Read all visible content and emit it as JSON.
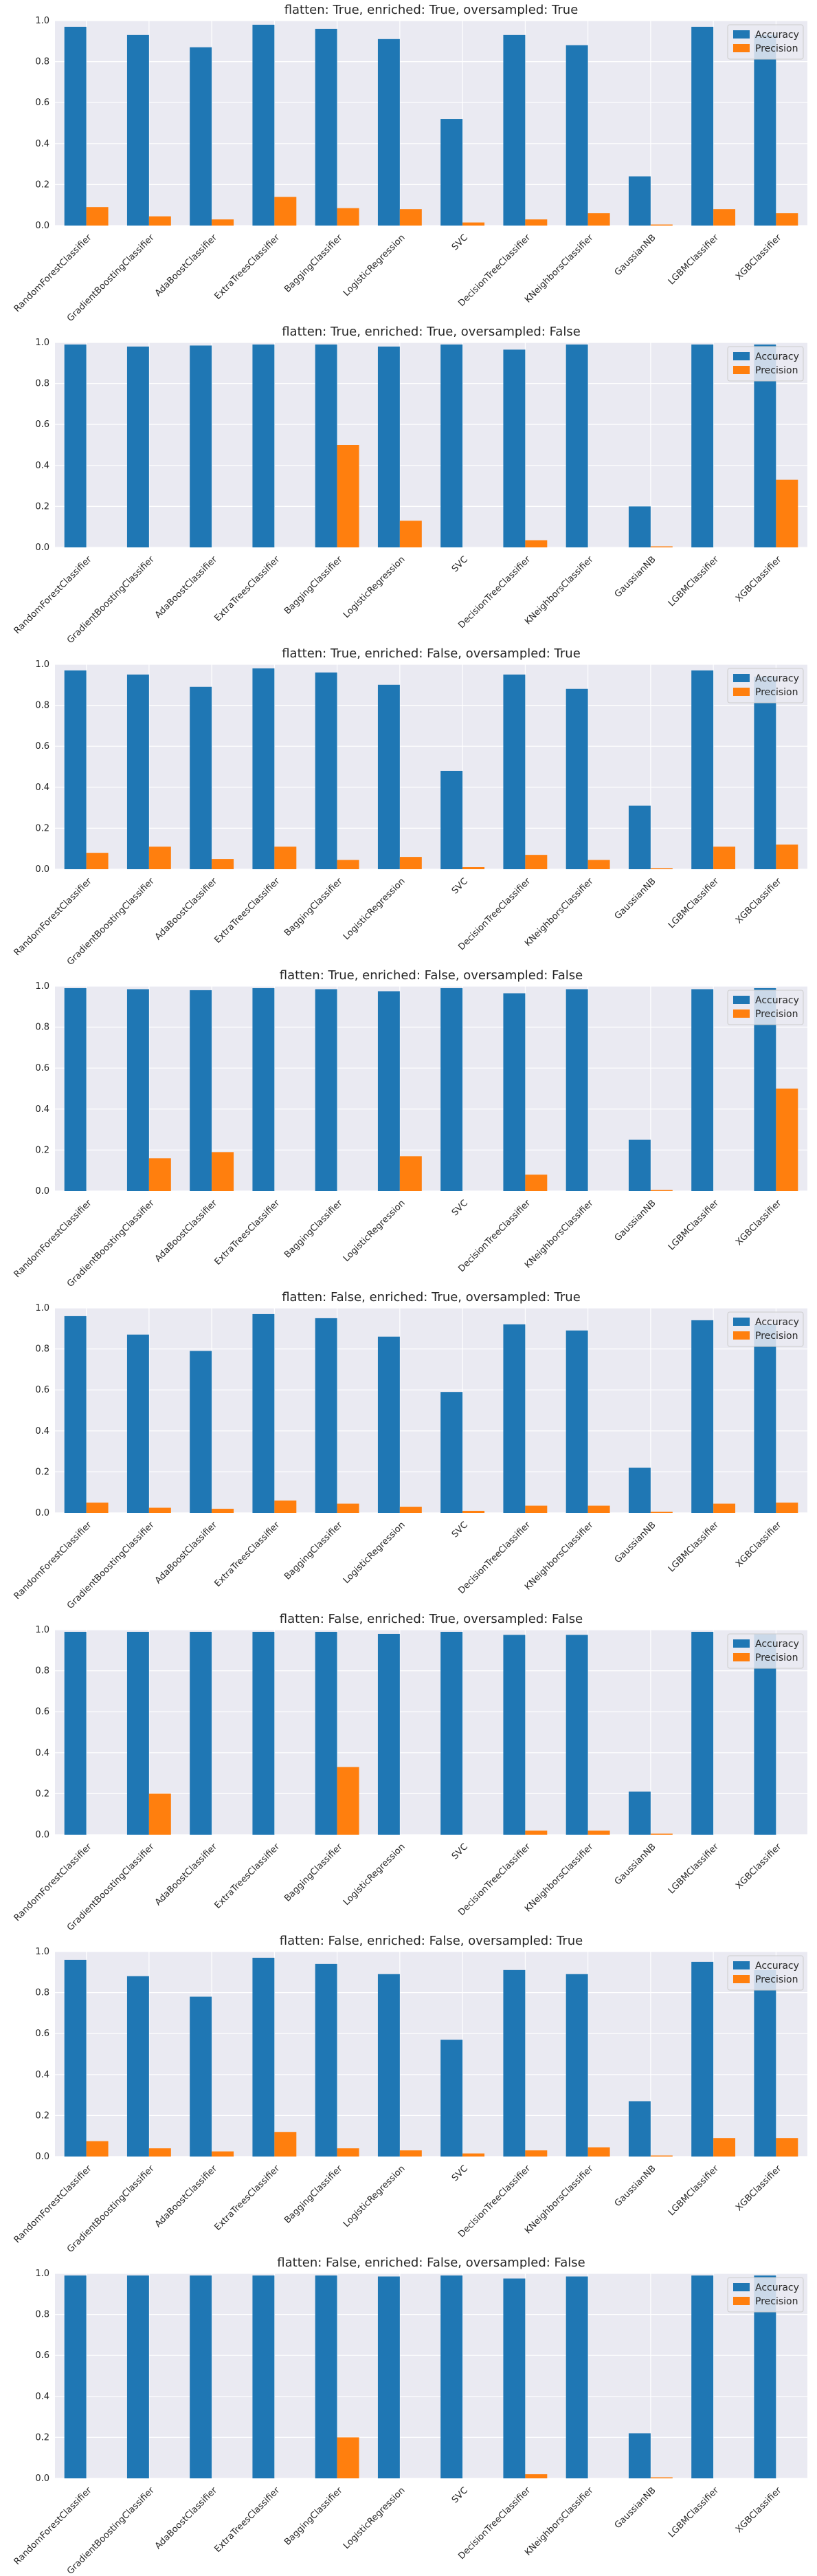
{
  "colors": {
    "accuracy": "#1f77b4",
    "precision": "#ff7f0e",
    "plot_bg": "#eaeaf2",
    "grid": "#ffffff"
  },
  "chart_data": [
    {
      "type": "bar",
      "title": "flatten: True, enriched: True, oversampled: True",
      "categories": [
        "RandomForestClassifier",
        "GradientBoostingClassifier",
        "AdaBoostClassifier",
        "ExtraTreesClassifier",
        "BaggingClassifier",
        "LogisticRegression",
        "SVC",
        "DecisionTreeClassifier",
        "KNeighborsClassifier",
        "GaussianNB",
        "LGBMClassifier",
        "XGBClassifier"
      ],
      "series": [
        {
          "name": "Accuracy",
          "values": [
            0.97,
            0.93,
            0.87,
            0.98,
            0.96,
            0.91,
            0.52,
            0.93,
            0.88,
            0.24,
            0.97,
            0.93
          ]
        },
        {
          "name": "Precision",
          "values": [
            0.09,
            0.045,
            0.03,
            0.14,
            0.085,
            0.08,
            0.015,
            0.03,
            0.06,
            0.005,
            0.08,
            0.06
          ]
        }
      ],
      "ylim": [
        0,
        1.0
      ],
      "yticks": [
        "0.0",
        "0.2",
        "0.4",
        "0.6",
        "0.8",
        "1.0"
      ],
      "grid": true,
      "legend": "top-right"
    },
    {
      "type": "bar",
      "title": "flatten: True, enriched: True, oversampled: False",
      "categories": [
        "RandomForestClassifier",
        "GradientBoostingClassifier",
        "AdaBoostClassifier",
        "ExtraTreesClassifier",
        "BaggingClassifier",
        "LogisticRegression",
        "SVC",
        "DecisionTreeClassifier",
        "KNeighborsClassifier",
        "GaussianNB",
        "LGBMClassifier",
        "XGBClassifier"
      ],
      "series": [
        {
          "name": "Accuracy",
          "values": [
            0.99,
            0.98,
            0.985,
            0.99,
            0.99,
            0.98,
            0.99,
            0.965,
            0.99,
            0.2,
            0.99,
            0.99
          ]
        },
        {
          "name": "Precision",
          "values": [
            0,
            0,
            0,
            0,
            0.5,
            0.13,
            0,
            0.035,
            0,
            0.005,
            0,
            0.33
          ]
        }
      ],
      "ylim": [
        0,
        1.0
      ],
      "yticks": [
        "0.0",
        "0.2",
        "0.4",
        "0.6",
        "0.8",
        "1.0"
      ],
      "grid": true,
      "legend": "top-right"
    },
    {
      "type": "bar",
      "title": "flatten: True, enriched: False, oversampled: True",
      "categories": [
        "RandomForestClassifier",
        "GradientBoostingClassifier",
        "AdaBoostClassifier",
        "ExtraTreesClassifier",
        "BaggingClassifier",
        "LogisticRegression",
        "SVC",
        "DecisionTreeClassifier",
        "KNeighborsClassifier",
        "GaussianNB",
        "LGBMClassifier",
        "XGBClassifier"
      ],
      "series": [
        {
          "name": "Accuracy",
          "values": [
            0.97,
            0.95,
            0.89,
            0.98,
            0.96,
            0.9,
            0.48,
            0.95,
            0.88,
            0.31,
            0.97,
            0.94
          ]
        },
        {
          "name": "Precision",
          "values": [
            0.08,
            0.11,
            0.05,
            0.11,
            0.045,
            0.06,
            0.01,
            0.07,
            0.045,
            0.005,
            0.11,
            0.12
          ]
        }
      ],
      "ylim": [
        0,
        1.0
      ],
      "yticks": [
        "0.0",
        "0.2",
        "0.4",
        "0.6",
        "0.8",
        "1.0"
      ],
      "grid": true,
      "legend": "top-right"
    },
    {
      "type": "bar",
      "title": "flatten: True, enriched: False, oversampled: False",
      "categories": [
        "RandomForestClassifier",
        "GradientBoostingClassifier",
        "AdaBoostClassifier",
        "ExtraTreesClassifier",
        "BaggingClassifier",
        "LogisticRegression",
        "SVC",
        "DecisionTreeClassifier",
        "KNeighborsClassifier",
        "GaussianNB",
        "LGBMClassifier",
        "XGBClassifier"
      ],
      "series": [
        {
          "name": "Accuracy",
          "values": [
            0.99,
            0.985,
            0.98,
            0.99,
            0.985,
            0.975,
            0.99,
            0.965,
            0.985,
            0.25,
            0.985,
            0.99
          ]
        },
        {
          "name": "Precision",
          "values": [
            0,
            0.16,
            0.19,
            0,
            0,
            0.17,
            0,
            0.08,
            0,
            0.005,
            0,
            0.5
          ]
        }
      ],
      "ylim": [
        0,
        1.0
      ],
      "yticks": [
        "0.0",
        "0.2",
        "0.4",
        "0.6",
        "0.8",
        "1.0"
      ],
      "grid": true,
      "legend": "top-right"
    },
    {
      "type": "bar",
      "title": "flatten: False, enriched: True, oversampled: True",
      "categories": [
        "RandomForestClassifier",
        "GradientBoostingClassifier",
        "AdaBoostClassifier",
        "ExtraTreesClassifier",
        "BaggingClassifier",
        "LogisticRegression",
        "SVC",
        "DecisionTreeClassifier",
        "KNeighborsClassifier",
        "GaussianNB",
        "LGBMClassifier",
        "XGBClassifier"
      ],
      "series": [
        {
          "name": "Accuracy",
          "values": [
            0.96,
            0.87,
            0.79,
            0.97,
            0.95,
            0.86,
            0.59,
            0.92,
            0.89,
            0.22,
            0.94,
            0.92
          ]
        },
        {
          "name": "Precision",
          "values": [
            0.05,
            0.025,
            0.02,
            0.06,
            0.045,
            0.03,
            0.01,
            0.035,
            0.035,
            0.005,
            0.045,
            0.05
          ]
        }
      ],
      "ylim": [
        0,
        1.0
      ],
      "yticks": [
        "0.0",
        "0.2",
        "0.4",
        "0.6",
        "0.8",
        "1.0"
      ],
      "grid": true,
      "legend": "top-right"
    },
    {
      "type": "bar",
      "title": "flatten: False, enriched: True, oversampled: False",
      "categories": [
        "RandomForestClassifier",
        "GradientBoostingClassifier",
        "AdaBoostClassifier",
        "ExtraTreesClassifier",
        "BaggingClassifier",
        "LogisticRegression",
        "SVC",
        "DecisionTreeClassifier",
        "KNeighborsClassifier",
        "GaussianNB",
        "LGBMClassifier",
        "XGBClassifier"
      ],
      "series": [
        {
          "name": "Accuracy",
          "values": [
            0.99,
            0.99,
            0.99,
            0.99,
            0.99,
            0.98,
            0.99,
            0.975,
            0.975,
            0.21,
            0.99,
            0.98
          ]
        },
        {
          "name": "Precision",
          "values": [
            0,
            0.2,
            0,
            0,
            0.33,
            0,
            0,
            0.02,
            0.02,
            0.005,
            0,
            0
          ]
        }
      ],
      "ylim": [
        0,
        1.0
      ],
      "yticks": [
        "0.0",
        "0.2",
        "0.4",
        "0.6",
        "0.8",
        "1.0"
      ],
      "grid": true,
      "legend": "top-right"
    },
    {
      "type": "bar",
      "title": "flatten: False, enriched: False, oversampled: True",
      "categories": [
        "RandomForestClassifier",
        "GradientBoostingClassifier",
        "AdaBoostClassifier",
        "ExtraTreesClassifier",
        "BaggingClassifier",
        "LogisticRegression",
        "SVC",
        "DecisionTreeClassifier",
        "KNeighborsClassifier",
        "GaussianNB",
        "LGBMClassifier",
        "XGBClassifier"
      ],
      "series": [
        {
          "name": "Accuracy",
          "values": [
            0.96,
            0.88,
            0.78,
            0.97,
            0.94,
            0.89,
            0.57,
            0.91,
            0.89,
            0.27,
            0.95,
            0.91
          ]
        },
        {
          "name": "Precision",
          "values": [
            0.075,
            0.04,
            0.025,
            0.12,
            0.04,
            0.03,
            0.015,
            0.03,
            0.045,
            0.005,
            0.09,
            0.09
          ]
        }
      ],
      "ylim": [
        0,
        1.0
      ],
      "yticks": [
        "0.0",
        "0.2",
        "0.4",
        "0.6",
        "0.8",
        "1.0"
      ],
      "grid": true,
      "legend": "top-right"
    },
    {
      "type": "bar",
      "title": "flatten: False, enriched: False, oversampled: False",
      "categories": [
        "RandomForestClassifier",
        "GradientBoostingClassifier",
        "AdaBoostClassifier",
        "ExtraTreesClassifier",
        "BaggingClassifier",
        "LogisticRegression",
        "SVC",
        "DecisionTreeClassifier",
        "KNeighborsClassifier",
        "GaussianNB",
        "LGBMClassifier",
        "XGBClassifier"
      ],
      "series": [
        {
          "name": "Accuracy",
          "values": [
            0.99,
            0.99,
            0.99,
            0.99,
            0.99,
            0.985,
            0.99,
            0.975,
            0.985,
            0.22,
            0.99,
            0.99
          ]
        },
        {
          "name": "Precision",
          "values": [
            0,
            0,
            0,
            0,
            0.2,
            0,
            0,
            0.02,
            0,
            0.005,
            0,
            0
          ]
        }
      ],
      "ylim": [
        0,
        1.0
      ],
      "yticks": [
        "0.0",
        "0.2",
        "0.4",
        "0.6",
        "0.8",
        "1.0"
      ],
      "grid": true,
      "legend": "top-right"
    }
  ]
}
